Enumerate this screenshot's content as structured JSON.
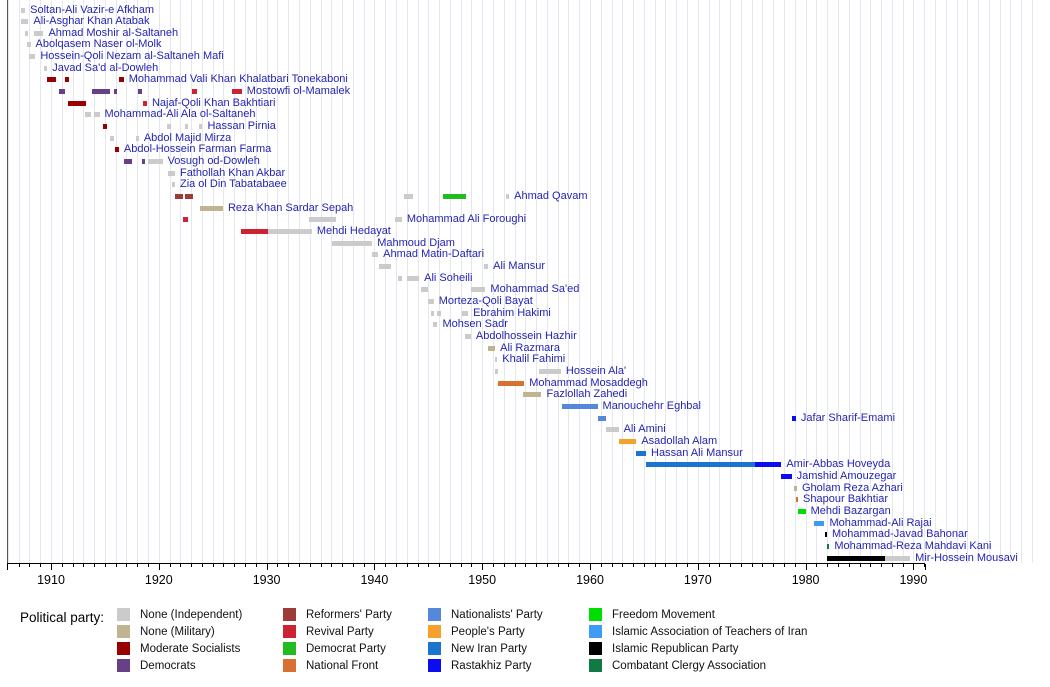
{
  "chart_data": {
    "type": "timeline",
    "title": "",
    "legend_title": "Political party:",
    "x_axis": {
      "tick_labels": [
        "1910",
        "1920",
        "1930",
        "1940",
        "1950",
        "1960",
        "1970",
        "1980",
        "1990"
      ],
      "range": [
        1906,
        1992
      ]
    },
    "parties": {
      "independent": {
        "label": "None (Independent)",
        "color": "#cbcbcb"
      },
      "military": {
        "label": "None (Military)",
        "color": "#bfb48f"
      },
      "moderate_socialists": {
        "label": "Moderate Socialists",
        "color": "#990000"
      },
      "democrats": {
        "label": "Democrats",
        "color": "#693f87"
      },
      "reformers": {
        "label": "Reformers' Party",
        "color": "#9e3a38"
      },
      "revival": {
        "label": "Revival Party",
        "color": "#cc2233"
      },
      "democrat_party": {
        "label": "Democrat Party",
        "color": "#22bb22"
      },
      "national_front": {
        "label": "National Front",
        "color": "#d8702f"
      },
      "nationalists": {
        "label": "Nationalists' Party",
        "color": "#5588dd"
      },
      "peoples": {
        "label": "People's Party",
        "color": "#f6a12c"
      },
      "new_iran": {
        "label": "New Iran Party",
        "color": "#1b75cf"
      },
      "rastakhiz": {
        "label": "Rastakhiz Party",
        "color": "#0c0cf0"
      },
      "freedom": {
        "label": "Freedom Movement",
        "color": "#00dd00"
      },
      "teachers": {
        "label": "Islamic Association of Teachers of Iran",
        "color": "#3d9bf5"
      },
      "islamic_republican": {
        "label": "Islamic Republican Party",
        "color": "#000000"
      },
      "combatant_clergy": {
        "label": "Combatant Clergy Association",
        "color": "#117a44"
      }
    },
    "legend_columns": [
      [
        "independent",
        "military",
        "moderate_socialists",
        "democrats"
      ],
      [
        "reformers",
        "revival",
        "democrat_party",
        "national_front"
      ],
      [
        "nationalists",
        "peoples",
        "new_iran",
        "rastakhiz"
      ],
      [
        "freedom",
        "teachers",
        "islamic_republican",
        "combatant_clergy"
      ]
    ],
    "rows": [
      {
        "name": "Soltan-Ali Vazir-e Afkham",
        "segments": [
          [
            1907.25,
            1907.6,
            "independent"
          ]
        ]
      },
      {
        "name": "Ali-Asghar Khan Atabak",
        "segments": [
          [
            1907.2,
            1907.9,
            "independent"
          ]
        ]
      },
      {
        "name": "Ahmad Moshir al-Saltaneh",
        "segments": [
          [
            1907.6,
            1907.9,
            "independent"
          ],
          [
            1908.4,
            1909.3,
            "independent"
          ]
        ]
      },
      {
        "name": "Abolqasem Naser ol-Molk",
        "segments": [
          [
            1907.75,
            1908.1,
            "independent"
          ]
        ]
      },
      {
        "name": "Hossein-Qoli Nezam al-Saltaneh Mafi",
        "segments": [
          [
            1907.95,
            1908.55,
            "independent"
          ]
        ]
      },
      {
        "name": "Javad Sa'd al-Dowleh",
        "segments": [
          [
            1909.35,
            1909.65,
            "independent"
          ]
        ]
      },
      {
        "name": "Mohammad Vali Khan Khalatbari Tonekaboni",
        "segments": [
          [
            1909.6,
            1910.5,
            "moderate_socialists"
          ],
          [
            1911.3,
            1911.65,
            "moderate_socialists"
          ],
          [
            1916.3,
            1916.75,
            "moderate_socialists"
          ]
        ]
      },
      {
        "name": "Mostowfi ol-Mamalek",
        "segments": [
          [
            1910.7,
            1911.3,
            "democrats"
          ],
          [
            1913.8,
            1915.45,
            "democrats"
          ],
          [
            1915.85,
            1916.1,
            "democrats"
          ],
          [
            1918.1,
            1918.45,
            "democrats"
          ],
          [
            1923.1,
            1923.5,
            "revival"
          ],
          [
            1926.75,
            1927.7,
            "revival"
          ]
        ]
      },
      {
        "name": "Najaf-Qoli Khan Bakhtiari",
        "segments": [
          [
            1911.55,
            1913.25,
            "moderate_socialists"
          ],
          [
            1918.55,
            1918.9,
            "revival"
          ]
        ]
      },
      {
        "name": "Mohammad-Ali Ala ol-Saltaneh",
        "segments": [
          [
            1913.2,
            1913.75,
            "independent"
          ],
          [
            1913.95,
            1914.5,
            "independent"
          ]
        ]
      },
      {
        "name": "Hassan Pirnia",
        "segments": [
          [
            1914.85,
            1915.15,
            "moderate_socialists"
          ],
          [
            1920.8,
            1921.15,
            "independent"
          ],
          [
            1922.4,
            1922.75,
            "independent"
          ],
          [
            1923.7,
            1924.05,
            "independent"
          ]
        ]
      },
      {
        "name": "Abdol Majid Mirza",
        "segments": [
          [
            1915.5,
            1915.8,
            "independent"
          ],
          [
            1917.85,
            1918.15,
            "independent"
          ]
        ]
      },
      {
        "name": "Abdol-Hossein Farman Farma",
        "segments": [
          [
            1915.95,
            1916.3,
            "moderate_socialists"
          ]
        ]
      },
      {
        "name": "Vosugh od-Dowleh",
        "segments": [
          [
            1916.75,
            1917.55,
            "democrats"
          ],
          [
            1918.4,
            1918.75,
            "democrats"
          ],
          [
            1919.0,
            1920.35,
            "independent"
          ]
        ]
      },
      {
        "name": "Fathollah Khan Akbar",
        "segments": [
          [
            1920.85,
            1921.5,
            "independent"
          ]
        ]
      },
      {
        "name": "Zia ol Din Tabatabaee",
        "segments": [
          [
            1921.2,
            1921.5,
            "independent"
          ]
        ]
      },
      {
        "name": "Ahmad Qavam",
        "segments": [
          [
            1921.5,
            1922.2,
            "reformers"
          ],
          [
            1922.4,
            1923.15,
            "reformers"
          ],
          [
            1942.75,
            1943.55,
            "independent"
          ],
          [
            1946.4,
            1948.5,
            "democrat_party"
          ],
          [
            1952.2,
            1952.5,
            "independent"
          ]
        ]
      },
      {
        "name": "Reza Khan Sardar Sepah",
        "segments": [
          [
            1923.85,
            1925.95,
            "military"
          ]
        ]
      },
      {
        "name": "Mohammad Ali Foroughi",
        "segments": [
          [
            1922.2,
            1922.7,
            "revival"
          ],
          [
            1933.9,
            1936.4,
            "independent"
          ],
          [
            1941.95,
            1942.55,
            "independent"
          ]
        ]
      },
      {
        "name": "Mehdi Hedayat",
        "segments": [
          [
            1927.6,
            1930.1,
            "revival"
          ],
          [
            1930.1,
            1934.2,
            "independent"
          ]
        ]
      },
      {
        "name": "Mahmoud Djam",
        "segments": [
          [
            1936.05,
            1939.8,
            "independent"
          ]
        ]
      },
      {
        "name": "Ahmad Matin-Daftari",
        "segments": [
          [
            1939.75,
            1940.35,
            "independent"
          ]
        ]
      },
      {
        "name": "Ali Mansur",
        "segments": [
          [
            1940.4,
            1941.55,
            "independent"
          ],
          [
            1950.2,
            1950.55,
            "independent"
          ]
        ]
      },
      {
        "name": "Ali Soheili",
        "segments": [
          [
            1942.15,
            1942.6,
            "independent"
          ],
          [
            1943.05,
            1944.15,
            "independent"
          ]
        ]
      },
      {
        "name": "Mohammad Sa'ed",
        "segments": [
          [
            1944.3,
            1944.95,
            "independent"
          ],
          [
            1948.95,
            1950.3,
            "independent"
          ]
        ]
      },
      {
        "name": "Morteza-Qoli Bayat",
        "segments": [
          [
            1944.95,
            1945.5,
            "independent"
          ]
        ]
      },
      {
        "name": "Ebrahim Hakimi",
        "segments": [
          [
            1945.25,
            1945.55,
            "independent"
          ],
          [
            1945.8,
            1946.15,
            "independent"
          ],
          [
            1948.15,
            1948.7,
            "independent"
          ]
        ]
      },
      {
        "name": "Mohsen Sadr",
        "segments": [
          [
            1945.4,
            1945.85,
            "independent"
          ]
        ]
      },
      {
        "name": "Abdolhossein Hazhir",
        "segments": [
          [
            1948.45,
            1948.95,
            "independent"
          ]
        ]
      },
      {
        "name": "Ali Razmara",
        "segments": [
          [
            1950.5,
            1951.2,
            "military"
          ]
        ]
      },
      {
        "name": "Khalil Fahimi",
        "segments": [
          [
            1951.15,
            1951.4,
            "independent"
          ]
        ]
      },
      {
        "name": "Hossein Ala'",
        "segments": [
          [
            1951.2,
            1951.5,
            "independent"
          ],
          [
            1955.3,
            1957.3,
            "independent"
          ]
        ]
      },
      {
        "name": "Mohammad Mosaddegh",
        "segments": [
          [
            1951.45,
            1953.9,
            "national_front"
          ]
        ]
      },
      {
        "name": "Fazlollah Zahedi",
        "segments": [
          [
            1953.8,
            1955.5,
            "military"
          ]
        ]
      },
      {
        "name": "Manouchehr Eghbal",
        "segments": [
          [
            1957.4,
            1960.7,
            "nationalists"
          ]
        ]
      },
      {
        "name": "Jafar Sharif-Emami",
        "segments": [
          [
            1960.7,
            1961.5,
            "nationalists"
          ],
          [
            1978.75,
            1979.1,
            "rastakhiz"
          ]
        ]
      },
      {
        "name": "Ali Amini",
        "segments": [
          [
            1961.5,
            1962.65,
            "independent"
          ]
        ]
      },
      {
        "name": "Asadollah Alam",
        "segments": [
          [
            1962.65,
            1964.3,
            "peoples"
          ]
        ]
      },
      {
        "name": "Hassan Ali Mansur",
        "segments": [
          [
            1964.3,
            1965.2,
            "new_iran"
          ]
        ]
      },
      {
        "name": "Amir-Abbas Hoveyda",
        "segments": [
          [
            1965.2,
            1975.3,
            "new_iran"
          ],
          [
            1975.3,
            1977.75,
            "rastakhiz"
          ]
        ]
      },
      {
        "name": "Jamshid Amouzegar",
        "segments": [
          [
            1977.75,
            1978.7,
            "rastakhiz"
          ]
        ]
      },
      {
        "name": "Gholam Reza Azhari",
        "segments": [
          [
            1978.95,
            1979.2,
            "military"
          ]
        ]
      },
      {
        "name": "Shapour Bakhtiar",
        "segments": [
          [
            1979.1,
            1979.3,
            "national_front"
          ]
        ]
      },
      {
        "name": "Mehdi Bazargan",
        "segments": [
          [
            1979.25,
            1980.0,
            "freedom"
          ]
        ]
      },
      {
        "name": "Mohammad-Ali Rajai",
        "segments": [
          [
            1980.75,
            1981.75,
            "teachers"
          ]
        ]
      },
      {
        "name": "Mohammad-Javad Bahonar",
        "segments": [
          [
            1981.8,
            1981.95,
            "islamic_republican"
          ]
        ]
      },
      {
        "name": "Mohammad-Reza Mahdavi Kani",
        "segments": [
          [
            1982.0,
            1982.2,
            "combatant_clergy"
          ]
        ]
      },
      {
        "name": "Mir-Hossein Mousavi",
        "segments": [
          [
            1982.0,
            1987.4,
            "islamic_republican"
          ],
          [
            1987.4,
            1989.7,
            "independent"
          ]
        ]
      }
    ]
  }
}
